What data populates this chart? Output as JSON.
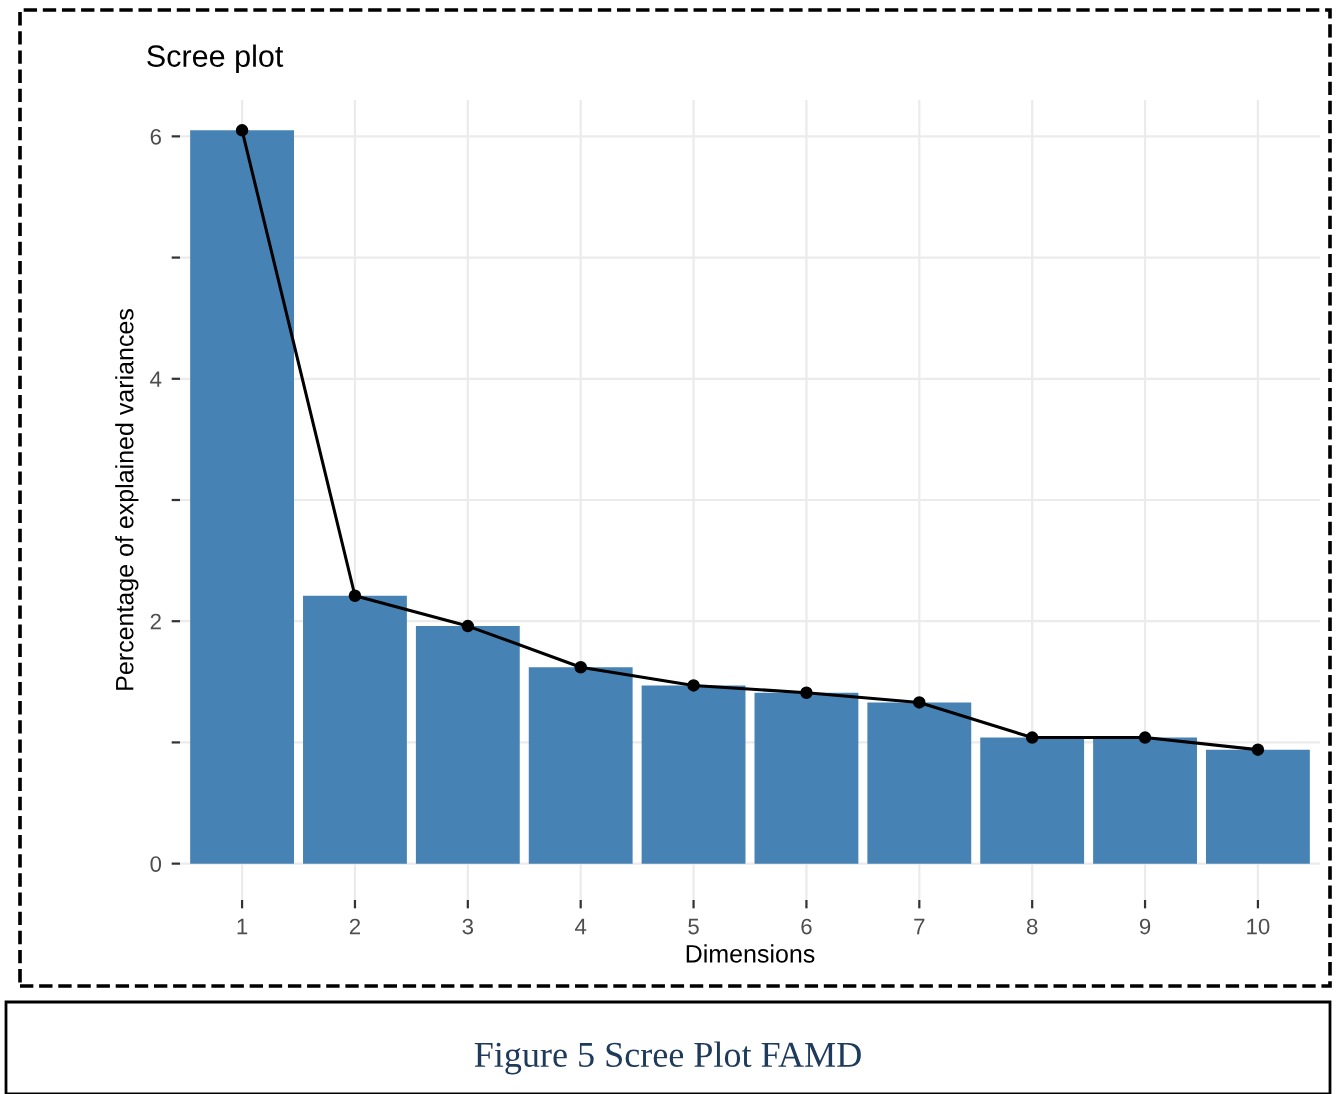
{
  "chart_data": {
    "type": "bar",
    "title": "Scree plot",
    "xlabel": "Dimensions",
    "ylabel": "Percentage of explained variances",
    "categories": [
      "1",
      "2",
      "3",
      "4",
      "5",
      "6",
      "7",
      "8",
      "9",
      "10"
    ],
    "series": [
      {
        "color": "#4682b4",
        "values": [
          6.05,
          2.21,
          1.96,
          1.62,
          1.47,
          1.41,
          1.33,
          1.04,
          1.04,
          0.94
        ]
      },
      {
        "type": "line",
        "color": "#000000",
        "marker": "circle",
        "values": [
          6.05,
          2.21,
          1.96,
          1.62,
          1.47,
          1.41,
          1.33,
          1.04,
          1.04,
          0.94
        ]
      }
    ],
    "ylim": [
      -0.3,
      6.3
    ],
    "yticks": [
      0,
      {
        "value": 1,
        "label": null
      },
      2,
      {
        "value": 3,
        "label": null
      },
      4,
      {
        "value": 5,
        "label": null
      },
      6
    ],
    "grid": true,
    "annotations": [
      "Figure 5 Scree Plot FAMD"
    ]
  }
}
